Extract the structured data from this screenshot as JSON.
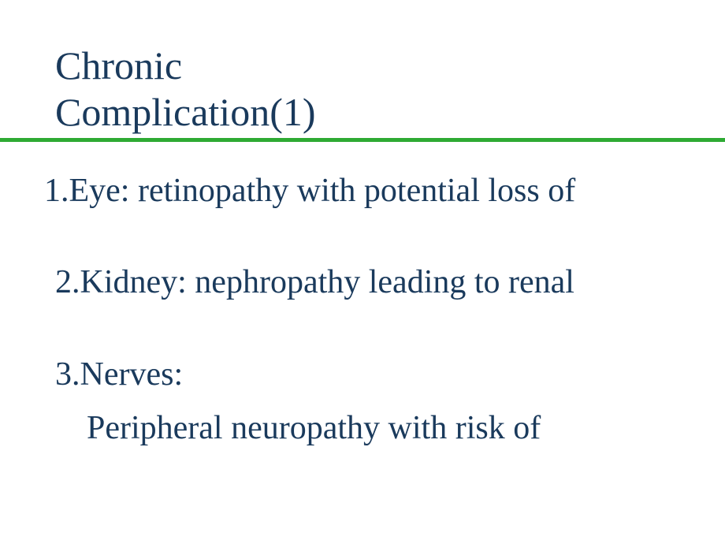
{
  "slide": {
    "title_line1": "Chronic",
    "title_line2": "Complication(1)",
    "title_color": "#1a3a5c",
    "title_fontsize": 50,
    "underline_color": "#2eaa33",
    "underline_thickness": 5,
    "body_color": "#1a3a5c",
    "body_fontsize": 42,
    "background_color": "#ffffff",
    "items": {
      "item1": "1.Eye: retinopathy with potential loss of",
      "item2": "2.Kidney: nephropathy leading to renal",
      "item3_head": "3.Nerves:",
      "item3_sub": "Peripheral neuropathy with risk of"
    }
  }
}
